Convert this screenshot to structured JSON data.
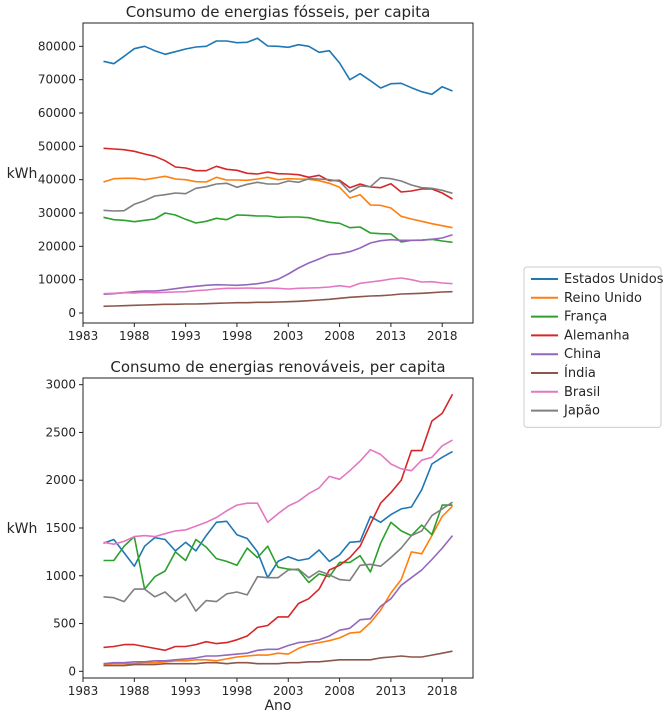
{
  "legend": {
    "placement": "right-center",
    "entries": [
      {
        "name": "Estados Unidos",
        "color": "#1f77b4"
      },
      {
        "name": "Reino Unido",
        "color": "#ff7f0e"
      },
      {
        "name": "França",
        "color": "#2ca02c"
      },
      {
        "name": "Alemanha",
        "color": "#d62728"
      },
      {
        "name": "China",
        "color": "#9467bd"
      },
      {
        "name": "Índia",
        "color": "#8c564b"
      },
      {
        "name": "Brasil",
        "color": "#e377c2"
      },
      {
        "name": "Japão",
        "color": "#7f7f7f"
      }
    ]
  },
  "chart_data": [
    {
      "type": "line",
      "title": "Consumo de energias fósseis, per capita",
      "xlabel": "",
      "ylabel": "kWh",
      "xlim": [
        1983,
        2021
      ],
      "ylim": [
        -3000,
        87000
      ],
      "xticks": [
        1983,
        1988,
        1993,
        1998,
        2003,
        2008,
        2013,
        2018
      ],
      "yticks": [
        0,
        10000,
        20000,
        30000,
        40000,
        50000,
        60000,
        70000,
        80000
      ],
      "x": [
        1985,
        1986,
        1987,
        1988,
        1989,
        1990,
        1991,
        1992,
        1993,
        1994,
        1995,
        1996,
        1997,
        1998,
        1999,
        2000,
        2001,
        2002,
        2003,
        2004,
        2005,
        2006,
        2007,
        2008,
        2009,
        2010,
        2011,
        2012,
        2013,
        2014,
        2015,
        2016,
        2017,
        2018,
        2019
      ],
      "series": [
        {
          "name": "Estados Unidos",
          "color": "#1f77b4",
          "values": [
            75500,
            74800,
            77000,
            79300,
            80000,
            78700,
            77600,
            78400,
            79200,
            79800,
            80000,
            81600,
            81600,
            81100,
            81200,
            82400,
            80100,
            80000,
            79700,
            80500,
            80000,
            78200,
            78700,
            75000,
            70000,
            71800,
            69700,
            67500,
            68800,
            68900,
            67600,
            66400,
            65600,
            67900,
            66600
          ]
        },
        {
          "name": "Reino Unido",
          "color": "#ff7f0e",
          "values": [
            39300,
            40300,
            40400,
            40400,
            40000,
            40500,
            41000,
            40200,
            40000,
            39400,
            39300,
            40700,
            39900,
            39900,
            39800,
            40200,
            40700,
            40000,
            40300,
            40200,
            40100,
            39700,
            38900,
            37700,
            34500,
            35500,
            32400,
            32300,
            31500,
            29000,
            28200,
            27500,
            26800,
            26200,
            25600
          ]
        },
        {
          "name": "França",
          "color": "#2ca02c",
          "values": [
            28700,
            28000,
            27800,
            27400,
            27800,
            28200,
            30000,
            29400,
            28100,
            27000,
            27500,
            28400,
            28000,
            29400,
            29300,
            29100,
            29100,
            28700,
            28800,
            28800,
            28600,
            27800,
            27200,
            26900,
            25600,
            25800,
            24000,
            23800,
            23700,
            21300,
            21800,
            21900,
            22100,
            21600,
            21200
          ]
        },
        {
          "name": "Alemanha",
          "color": "#d62728",
          "values": [
            49400,
            49200,
            49000,
            48500,
            47700,
            47000,
            45700,
            43800,
            43500,
            42700,
            42700,
            44000,
            43100,
            42800,
            41900,
            41700,
            42300,
            41800,
            41700,
            41500,
            40700,
            41300,
            39700,
            39800,
            37600,
            38700,
            37800,
            37600,
            38800,
            36300,
            36600,
            37200,
            37200,
            36000,
            34200
          ]
        },
        {
          "name": "China",
          "color": "#9467bd",
          "values": [
            5600,
            5800,
            6100,
            6400,
            6600,
            6600,
            6900,
            7300,
            7700,
            8000,
            8300,
            8500,
            8400,
            8300,
            8500,
            8800,
            9300,
            10100,
            11700,
            13500,
            15000,
            16200,
            17500,
            17800,
            18400,
            19500,
            21000,
            21700,
            22000,
            21800,
            21800,
            21800,
            22100,
            22500,
            23500
          ]
        },
        {
          "name": "Índia",
          "color": "#8c564b",
          "values": [
            2000,
            2100,
            2200,
            2300,
            2400,
            2500,
            2600,
            2600,
            2700,
            2700,
            2800,
            2900,
            3000,
            3100,
            3100,
            3200,
            3200,
            3300,
            3400,
            3500,
            3700,
            3900,
            4100,
            4400,
            4700,
            4900,
            5100,
            5200,
            5400,
            5700,
            5800,
            5900,
            6100,
            6300,
            6400
          ]
        },
        {
          "name": "Brasil",
          "color": "#e377c2",
          "values": [
            5800,
            5900,
            6100,
            6000,
            6200,
            6100,
            6200,
            6300,
            6400,
            6700,
            6900,
            7200,
            7400,
            7400,
            7500,
            7400,
            7500,
            7400,
            7200,
            7400,
            7500,
            7600,
            7800,
            8200,
            7800,
            8900,
            9300,
            9700,
            10200,
            10500,
            10000,
            9300,
            9400,
            9000,
            8800
          ]
        },
        {
          "name": "Japão",
          "color": "#7f7f7f",
          "values": [
            30800,
            30600,
            30700,
            32600,
            33700,
            35100,
            35500,
            36000,
            35800,
            37400,
            37900,
            38700,
            38900,
            37700,
            38600,
            39200,
            38700,
            38700,
            39600,
            39200,
            40300,
            40200,
            40000,
            39500,
            36300,
            38100,
            37900,
            40600,
            40300,
            39600,
            38400,
            37600,
            37400,
            36800,
            35900
          ]
        }
      ]
    },
    {
      "type": "line",
      "title": "Consumo de energias renováveis, per capita",
      "xlabel": "Ano",
      "ylabel": "kWh",
      "xlim": [
        1983,
        2021
      ],
      "ylim": [
        -70,
        3070
      ],
      "xticks": [
        1983,
        1988,
        1993,
        1998,
        2003,
        2008,
        2013,
        2018
      ],
      "yticks": [
        0,
        500,
        1000,
        1500,
        2000,
        2500,
        3000
      ],
      "x": [
        1985,
        1986,
        1987,
        1988,
        1989,
        1990,
        1991,
        1992,
        1993,
        1994,
        1995,
        1996,
        1997,
        1998,
        1999,
        2000,
        2001,
        2002,
        2003,
        2004,
        2005,
        2006,
        2007,
        2008,
        2009,
        2010,
        2011,
        2012,
        2013,
        2014,
        2015,
        2016,
        2017,
        2018,
        2019
      ],
      "series": [
        {
          "name": "Estados Unidos",
          "color": "#1f77b4",
          "values": [
            1340,
            1380,
            1240,
            1100,
            1310,
            1400,
            1380,
            1260,
            1350,
            1260,
            1420,
            1560,
            1570,
            1430,
            1390,
            1250,
            980,
            1150,
            1200,
            1160,
            1180,
            1270,
            1150,
            1220,
            1350,
            1360,
            1620,
            1560,
            1640,
            1700,
            1720,
            1900,
            2170,
            2240,
            2300
          ]
        },
        {
          "name": "Reino Unido",
          "color": "#ff7f0e",
          "values": [
            70,
            80,
            80,
            80,
            90,
            90,
            100,
            110,
            110,
            120,
            120,
            110,
            130,
            150,
            160,
            170,
            170,
            190,
            180,
            240,
            280,
            300,
            320,
            350,
            400,
            410,
            510,
            640,
            820,
            960,
            1250,
            1230,
            1420,
            1620,
            1730
          ]
        },
        {
          "name": "França",
          "color": "#2ca02c",
          "values": [
            1160,
            1160,
            1310,
            1410,
            860,
            990,
            1050,
            1250,
            1160,
            1380,
            1300,
            1180,
            1150,
            1110,
            1290,
            1190,
            1310,
            1090,
            1070,
            1060,
            930,
            1020,
            990,
            1140,
            1140,
            1210,
            1040,
            1340,
            1560,
            1470,
            1420,
            1530,
            1430,
            1740,
            1740
          ]
        },
        {
          "name": "Alemanha",
          "color": "#d62728",
          "values": [
            250,
            260,
            280,
            280,
            260,
            240,
            220,
            260,
            260,
            280,
            310,
            290,
            300,
            330,
            370,
            460,
            480,
            570,
            570,
            710,
            760,
            860,
            1060,
            1110,
            1190,
            1310,
            1540,
            1760,
            1870,
            2000,
            2310,
            2310,
            2620,
            2700,
            2900
          ]
        },
        {
          "name": "China",
          "color": "#9467bd",
          "values": [
            80,
            90,
            90,
            100,
            100,
            110,
            110,
            120,
            130,
            140,
            160,
            160,
            170,
            180,
            190,
            220,
            230,
            230,
            270,
            300,
            310,
            330,
            370,
            430,
            450,
            540,
            550,
            680,
            760,
            900,
            980,
            1060,
            1170,
            1290,
            1420
          ]
        },
        {
          "name": "Índia",
          "color": "#8c564b",
          "values": [
            60,
            60,
            60,
            70,
            70,
            70,
            80,
            80,
            80,
            80,
            90,
            90,
            80,
            90,
            90,
            80,
            80,
            80,
            90,
            90,
            100,
            100,
            110,
            120,
            120,
            120,
            120,
            140,
            150,
            160,
            150,
            150,
            170,
            190,
            210
          ]
        },
        {
          "name": "Brasil",
          "color": "#e377c2",
          "values": [
            1350,
            1330,
            1360,
            1410,
            1420,
            1410,
            1440,
            1470,
            1480,
            1520,
            1560,
            1610,
            1680,
            1740,
            1760,
            1760,
            1560,
            1650,
            1730,
            1780,
            1860,
            1920,
            2040,
            2010,
            2100,
            2200,
            2320,
            2270,
            2170,
            2120,
            2100,
            2210,
            2240,
            2360,
            2420
          ]
        },
        {
          "name": "Japão",
          "color": "#7f7f7f",
          "values": [
            780,
            770,
            730,
            860,
            860,
            780,
            830,
            730,
            810,
            630,
            740,
            730,
            810,
            830,
            800,
            990,
            980,
            980,
            1060,
            1070,
            980,
            1050,
            1010,
            960,
            950,
            1110,
            1120,
            1100,
            1190,
            1290,
            1420,
            1470,
            1630,
            1700,
            1770
          ]
        }
      ]
    }
  ]
}
